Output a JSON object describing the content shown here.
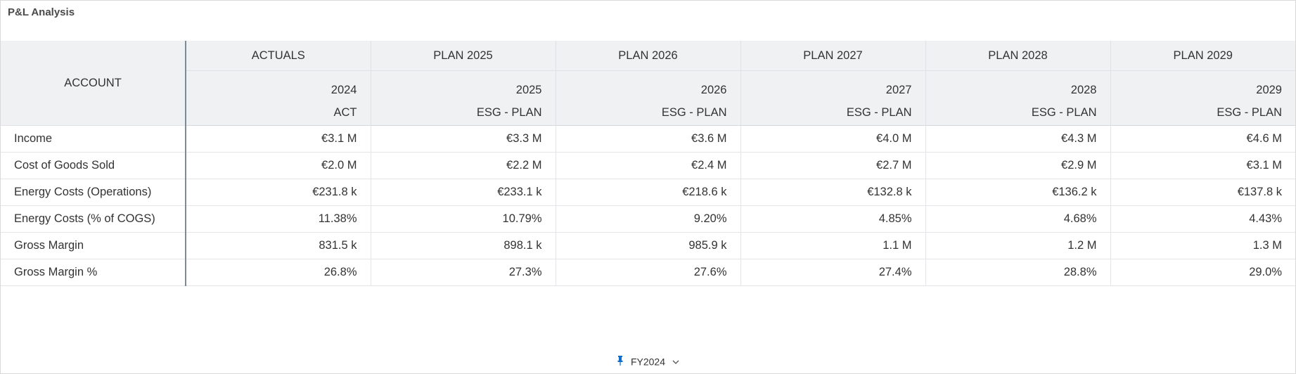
{
  "widget": {
    "title": "P&L Analysis"
  },
  "table": {
    "account_header": "ACCOUNT",
    "columns": [
      {
        "group": "ACTUALS",
        "year": "2024",
        "version": "ACT"
      },
      {
        "group": "PLAN 2025",
        "year": "2025",
        "version": "ESG - PLAN"
      },
      {
        "group": "PLAN 2026",
        "year": "2026",
        "version": "ESG - PLAN"
      },
      {
        "group": "PLAN 2027",
        "year": "2027",
        "version": "ESG - PLAN"
      },
      {
        "group": "PLAN 2028",
        "year": "2028",
        "version": "ESG - PLAN"
      },
      {
        "group": "PLAN 2029",
        "year": "2029",
        "version": "ESG - PLAN"
      }
    ],
    "rows": [
      {
        "account": "Income",
        "values": [
          "€3.1 M",
          "€3.3 M",
          "€3.6 M",
          "€4.0 M",
          "€4.3 M",
          "€4.6 M"
        ]
      },
      {
        "account": "Cost of Goods Sold",
        "values": [
          "€2.0 M",
          "€2.2 M",
          "€2.4 M",
          "€2.7 M",
          "€2.9 M",
          "€3.1 M"
        ]
      },
      {
        "account": "Energy Costs (Operations)",
        "values": [
          "€231.8 k",
          "€233.1 k",
          "€218.6 k",
          "€132.8 k",
          "€136.2 k",
          "€137.8 k"
        ]
      },
      {
        "account": "Energy Costs (% of COGS)",
        "values": [
          "11.38%",
          "10.79%",
          "9.20%",
          "4.85%",
          "4.68%",
          "4.43%"
        ]
      },
      {
        "account": "Gross Margin",
        "values": [
          "831.5 k",
          "898.1 k",
          "985.9 k",
          "1.1 M",
          "1.2 M",
          "1.3 M"
        ]
      },
      {
        "account": "Gross Margin %",
        "values": [
          "26.8%",
          "27.3%",
          "27.6%",
          "27.4%",
          "28.8%",
          "29.0%"
        ]
      }
    ]
  },
  "footer": {
    "filter_label": "FY2024",
    "pin_icon": "pin-icon",
    "dropdown_icon": "chevron-down-icon",
    "accent_color": "#0a6ed1"
  }
}
